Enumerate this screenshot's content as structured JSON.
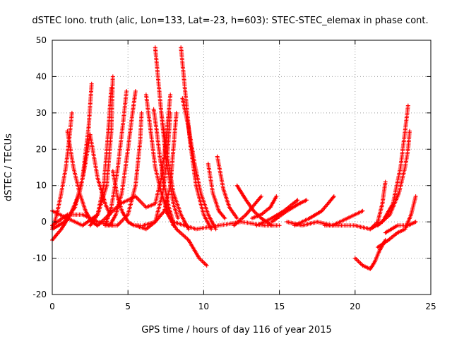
{
  "chart_data": {
    "type": "scatter",
    "title": "dSTEC Iono. truth (alic, Lon=133, Lat=-23, h=603): STEC-STEC_elemax in phase cont.",
    "xlabel": "GPS time / hours of day 116 of year 2015",
    "ylabel": "dSTEC  / TECUs",
    "xlim": [
      0,
      25
    ],
    "ylim": [
      -20,
      50
    ],
    "xticks": [
      0,
      5,
      10,
      15,
      20,
      25
    ],
    "yticks": [
      -20,
      -10,
      0,
      10,
      20,
      30,
      40,
      50
    ],
    "grid": true,
    "marker": "plus",
    "color": "#ff0000",
    "series": [
      {
        "x": [
          0.0,
          0.3,
          0.6,
          0.9,
          1.1,
          1.3
        ],
        "y": [
          -2,
          2,
          8,
          15,
          22,
          30
        ]
      },
      {
        "x": [
          1.0,
          1.4,
          1.8,
          2.2,
          2.6,
          3.0
        ],
        "y": [
          25,
          15,
          8,
          3,
          0,
          -1
        ]
      },
      {
        "x": [
          0.0,
          0.6,
          1.2,
          1.8,
          2.1,
          2.5
        ],
        "y": [
          -5,
          -2,
          2,
          8,
          14,
          24
        ]
      },
      {
        "x": [
          2.5,
          3.0,
          3.5,
          3.8
        ],
        "y": [
          24,
          12,
          5,
          2
        ]
      },
      {
        "x": [
          0.0,
          0.8,
          1.5,
          2.0,
          2.4,
          2.6
        ],
        "y": [
          -2,
          0,
          4,
          12,
          26,
          38
        ]
      },
      {
        "x": [
          0.0,
          1.0,
          2.0,
          3.0,
          3.6,
          3.9,
          4.0
        ],
        "y": [
          3,
          1,
          -1,
          2,
          10,
          25,
          40
        ]
      },
      {
        "x": [
          2.5,
          3.0,
          3.4,
          3.7,
          3.9
        ],
        "y": [
          -1,
          2,
          10,
          25,
          37
        ]
      },
      {
        "x": [
          4.0,
          4.3,
          4.6,
          5.0,
          5.4,
          5.8
        ],
        "y": [
          14,
          7,
          3,
          0,
          -1,
          -1
        ]
      },
      {
        "x": [
          3.5,
          3.9,
          4.3,
          4.7,
          4.9
        ],
        "y": [
          -1,
          4,
          14,
          28,
          36
        ]
      },
      {
        "x": [
          3.8,
          4.2,
          4.6,
          5.0,
          5.3,
          5.5
        ],
        "y": [
          -1,
          2,
          8,
          20,
          30,
          36
        ]
      },
      {
        "x": [
          3.5,
          4.3,
          5.0,
          5.5,
          5.8,
          5.9
        ],
        "y": [
          -1,
          -1,
          2,
          10,
          22,
          30
        ]
      },
      {
        "x": [
          0.0,
          1.0,
          2.0,
          3.0,
          4.0
        ],
        "y": [
          -1,
          2,
          2,
          0,
          -1
        ]
      },
      {
        "x": [
          6.2,
          6.5,
          6.8,
          7.2,
          7.6,
          8.0
        ],
        "y": [
          35,
          25,
          15,
          8,
          3,
          -1
        ]
      },
      {
        "x": [
          6.7,
          6.9,
          7.1,
          7.4,
          7.7,
          8.0
        ],
        "y": [
          31,
          25,
          18,
          10,
          4,
          0
        ]
      },
      {
        "x": [
          6.8,
          7.2,
          7.6,
          8.0,
          8.5,
          9.0
        ],
        "y": [
          48,
          30,
          18,
          8,
          2,
          -2
        ]
      },
      {
        "x": [
          3.0,
          4.5,
          5.5,
          6.2,
          6.8,
          7.2,
          7.5,
          7.8
        ],
        "y": [
          -1,
          5,
          7,
          4,
          5,
          12,
          22,
          35
        ]
      },
      {
        "x": [
          5.5,
          6.2,
          6.8,
          7.3,
          7.6,
          7.8
        ],
        "y": [
          -1,
          -2,
          0,
          8,
          18,
          30
        ]
      },
      {
        "x": [
          7.2,
          7.5,
          7.8,
          8.0,
          8.3
        ],
        "y": [
          30,
          18,
          10,
          5,
          1
        ]
      },
      {
        "x": [
          6.0,
          6.8,
          7.4,
          7.8,
          8.0,
          8.2
        ],
        "y": [
          -1,
          0,
          3,
          10,
          20,
          30
        ]
      },
      {
        "x": [
          8.5,
          8.8,
          9.1,
          9.5,
          10.0,
          10.5
        ],
        "y": [
          48,
          35,
          22,
          10,
          2,
          -2
        ]
      },
      {
        "x": [
          8.6,
          9.0,
          9.4,
          9.8,
          10.3,
          10.8
        ],
        "y": [
          34,
          26,
          16,
          8,
          2,
          -2
        ]
      },
      {
        "x": [
          7.5,
          8.2,
          9.0,
          9.7,
          10.2
        ],
        "y": [
          3,
          -2,
          -5,
          -10,
          -12
        ]
      },
      {
        "x": [
          10.3,
          10.6,
          11.0,
          11.4
        ],
        "y": [
          16,
          8,
          3,
          1
        ]
      },
      {
        "x": [
          10.9,
          11.3,
          11.7,
          12.2
        ],
        "y": [
          18,
          9,
          4,
          1
        ]
      },
      {
        "x": [
          8.0,
          9.5,
          11.0,
          12.5,
          14.0,
          15.0
        ],
        "y": [
          0,
          -2,
          -1,
          0,
          -1,
          -1
        ]
      },
      {
        "x": [
          12.2,
          12.8,
          13.3,
          13.8,
          14.5
        ],
        "y": [
          10,
          6,
          3,
          1,
          -1
        ]
      },
      {
        "x": [
          12.0,
          12.8,
          13.4,
          13.8
        ],
        "y": [
          -1,
          2,
          5,
          7
        ]
      },
      {
        "x": [
          13.2,
          13.8,
          14.4,
          14.8
        ],
        "y": [
          1,
          2,
          4,
          7
        ]
      },
      {
        "x": [
          13.5,
          14.5,
          15.3,
          16.2
        ],
        "y": [
          -1,
          1,
          3,
          6
        ]
      },
      {
        "x": [
          14.5,
          15.5,
          16.3,
          16.8
        ],
        "y": [
          0,
          3,
          5,
          6
        ]
      },
      {
        "x": [
          16.0,
          17.0,
          17.8,
          18.4,
          18.6
        ],
        "y": [
          -1,
          1,
          3,
          6,
          7
        ]
      },
      {
        "x": [
          15.5,
          16.5,
          17.5,
          18.5,
          19.5,
          20.5
        ],
        "y": [
          0,
          -1,
          0,
          -1,
          1,
          3
        ]
      },
      {
        "x": [
          18.0,
          19.0,
          20.0,
          21.0,
          21.5,
          21.8,
          22.0
        ],
        "y": [
          -1,
          -1,
          -1,
          -2,
          0,
          5,
          11
        ]
      },
      {
        "x": [
          20.0,
          20.5,
          21.0,
          21.3,
          21.6,
          22.0
        ],
        "y": [
          -10,
          -12,
          -13,
          -11,
          -8,
          -5
        ]
      },
      {
        "x": [
          21.0,
          21.8,
          22.5,
          23.0,
          23.3,
          23.5
        ],
        "y": [
          -2,
          0,
          5,
          15,
          25,
          32
        ]
      },
      {
        "x": [
          21.5,
          22.3,
          22.9,
          23.3,
          23.5,
          23.6
        ],
        "y": [
          -1,
          2,
          8,
          15,
          20,
          25
        ]
      },
      {
        "x": [
          21.5,
          22.2,
          22.8,
          23.3,
          23.7,
          24.0
        ],
        "y": [
          -7,
          -5,
          -3,
          -2,
          2,
          7
        ]
      },
      {
        "x": [
          22.0,
          22.8,
          23.5,
          24.0
        ],
        "y": [
          -3,
          -1,
          -1,
          0
        ]
      }
    ]
  }
}
